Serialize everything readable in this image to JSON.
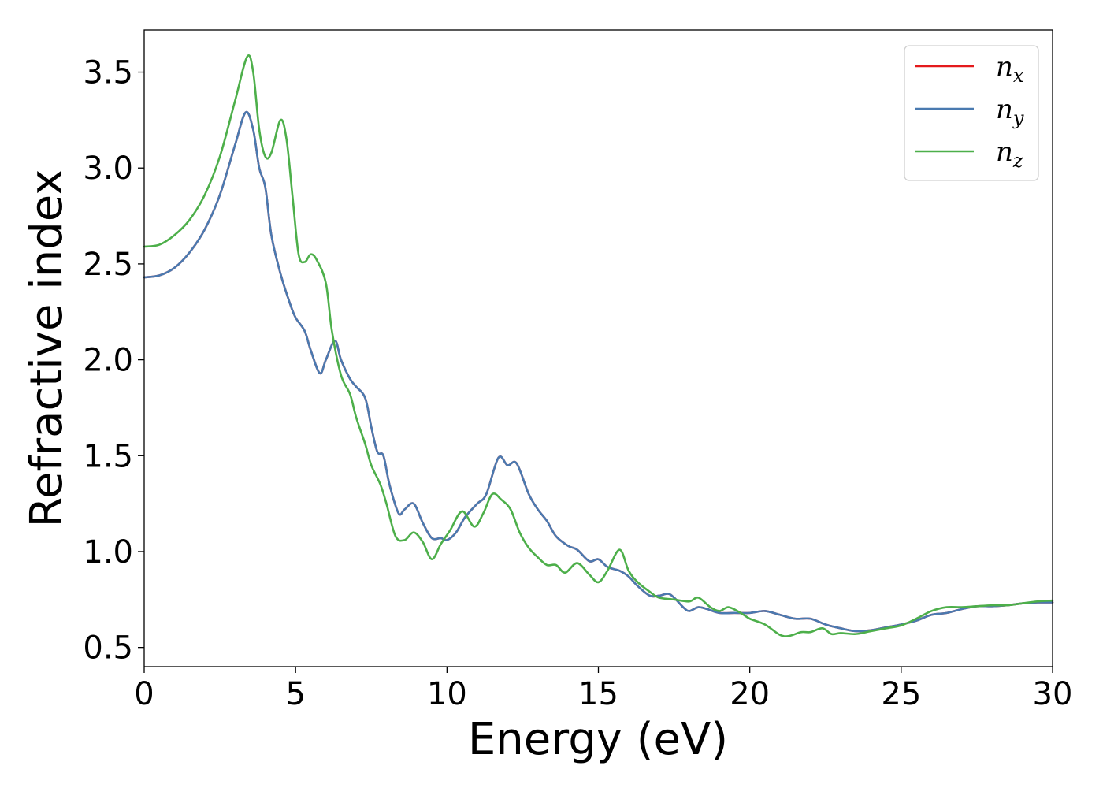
{
  "chart_data": {
    "type": "line",
    "xlabel": "Energy (eV)",
    "ylabel": "Refractive index",
    "xlim": [
      0,
      30
    ],
    "ylim": [
      0.4,
      3.72
    ],
    "x_ticks": [
      "0",
      "5",
      "10",
      "15",
      "20",
      "25",
      "30"
    ],
    "y_ticks": [
      "0.5",
      "1.0",
      "1.5",
      "2.0",
      "2.5",
      "3.0",
      "3.5"
    ],
    "grid": false,
    "legend_position": "top-right",
    "series": [
      {
        "name": "n",
        "subscript": "x",
        "color": "#e41a1c",
        "points": [
          [
            0,
            2.43
          ],
          [
            0.5,
            2.44
          ],
          [
            1,
            2.48
          ],
          [
            1.5,
            2.56
          ],
          [
            2,
            2.68
          ],
          [
            2.5,
            2.86
          ],
          [
            3,
            3.12
          ],
          [
            3.35,
            3.29
          ],
          [
            3.6,
            3.2
          ],
          [
            3.8,
            3.0
          ],
          [
            4.0,
            2.9
          ],
          [
            4.2,
            2.65
          ],
          [
            4.5,
            2.45
          ],
          [
            4.8,
            2.3
          ],
          [
            5.0,
            2.22
          ],
          [
            5.3,
            2.15
          ],
          [
            5.5,
            2.05
          ],
          [
            5.8,
            1.93
          ],
          [
            6.0,
            2.0
          ],
          [
            6.3,
            2.1
          ],
          [
            6.5,
            2.0
          ],
          [
            6.8,
            1.9
          ],
          [
            7.0,
            1.86
          ],
          [
            7.3,
            1.8
          ],
          [
            7.5,
            1.65
          ],
          [
            7.7,
            1.52
          ],
          [
            7.9,
            1.5
          ],
          [
            8.1,
            1.35
          ],
          [
            8.4,
            1.2
          ],
          [
            8.6,
            1.22
          ],
          [
            8.9,
            1.25
          ],
          [
            9.2,
            1.15
          ],
          [
            9.5,
            1.07
          ],
          [
            9.8,
            1.07
          ],
          [
            10.0,
            1.06
          ],
          [
            10.3,
            1.1
          ],
          [
            10.6,
            1.18
          ],
          [
            11.0,
            1.25
          ],
          [
            11.3,
            1.3
          ],
          [
            11.7,
            1.49
          ],
          [
            12.0,
            1.45
          ],
          [
            12.3,
            1.46
          ],
          [
            12.7,
            1.3
          ],
          [
            13.0,
            1.22
          ],
          [
            13.3,
            1.16
          ],
          [
            13.6,
            1.08
          ],
          [
            14.0,
            1.03
          ],
          [
            14.3,
            1.01
          ],
          [
            14.7,
            0.95
          ],
          [
            15.0,
            0.96
          ],
          [
            15.3,
            0.92
          ],
          [
            15.7,
            0.9
          ],
          [
            16.0,
            0.87
          ],
          [
            16.3,
            0.82
          ],
          [
            16.7,
            0.77
          ],
          [
            17.0,
            0.77
          ],
          [
            17.3,
            0.78
          ],
          [
            17.5,
            0.76
          ],
          [
            17.8,
            0.71
          ],
          [
            18.0,
            0.69
          ],
          [
            18.3,
            0.71
          ],
          [
            18.6,
            0.7
          ],
          [
            19.0,
            0.68
          ],
          [
            19.5,
            0.68
          ],
          [
            20.0,
            0.68
          ],
          [
            20.5,
            0.69
          ],
          [
            21.0,
            0.67
          ],
          [
            21.5,
            0.65
          ],
          [
            22.0,
            0.65
          ],
          [
            22.5,
            0.62
          ],
          [
            23.0,
            0.6
          ],
          [
            23.5,
            0.585
          ],
          [
            24.0,
            0.59
          ],
          [
            24.5,
            0.605
          ],
          [
            25.0,
            0.62
          ],
          [
            25.5,
            0.64
          ],
          [
            26.0,
            0.67
          ],
          [
            26.5,
            0.68
          ],
          [
            27.0,
            0.7
          ],
          [
            27.5,
            0.715
          ],
          [
            28.0,
            0.715
          ],
          [
            28.5,
            0.72
          ],
          [
            29.0,
            0.73
          ],
          [
            29.5,
            0.735
          ],
          [
            30.0,
            0.735
          ]
        ]
      },
      {
        "name": "n",
        "subscript": "y",
        "color": "#4a7ab0",
        "points": [
          [
            0,
            2.43
          ],
          [
            0.5,
            2.44
          ],
          [
            1,
            2.48
          ],
          [
            1.5,
            2.56
          ],
          [
            2,
            2.68
          ],
          [
            2.5,
            2.86
          ],
          [
            3,
            3.12
          ],
          [
            3.35,
            3.29
          ],
          [
            3.6,
            3.2
          ],
          [
            3.8,
            3.0
          ],
          [
            4.0,
            2.9
          ],
          [
            4.2,
            2.65
          ],
          [
            4.5,
            2.45
          ],
          [
            4.8,
            2.3
          ],
          [
            5.0,
            2.22
          ],
          [
            5.3,
            2.15
          ],
          [
            5.5,
            2.05
          ],
          [
            5.8,
            1.93
          ],
          [
            6.0,
            2.0
          ],
          [
            6.3,
            2.1
          ],
          [
            6.5,
            2.0
          ],
          [
            6.8,
            1.9
          ],
          [
            7.0,
            1.86
          ],
          [
            7.3,
            1.8
          ],
          [
            7.5,
            1.65
          ],
          [
            7.7,
            1.52
          ],
          [
            7.9,
            1.5
          ],
          [
            8.1,
            1.35
          ],
          [
            8.4,
            1.2
          ],
          [
            8.6,
            1.22
          ],
          [
            8.9,
            1.25
          ],
          [
            9.2,
            1.15
          ],
          [
            9.5,
            1.07
          ],
          [
            9.8,
            1.07
          ],
          [
            10.0,
            1.06
          ],
          [
            10.3,
            1.1
          ],
          [
            10.6,
            1.18
          ],
          [
            11.0,
            1.25
          ],
          [
            11.3,
            1.3
          ],
          [
            11.7,
            1.49
          ],
          [
            12.0,
            1.45
          ],
          [
            12.3,
            1.46
          ],
          [
            12.7,
            1.3
          ],
          [
            13.0,
            1.22
          ],
          [
            13.3,
            1.16
          ],
          [
            13.6,
            1.08
          ],
          [
            14.0,
            1.03
          ],
          [
            14.3,
            1.01
          ],
          [
            14.7,
            0.95
          ],
          [
            15.0,
            0.96
          ],
          [
            15.3,
            0.92
          ],
          [
            15.7,
            0.9
          ],
          [
            16.0,
            0.87
          ],
          [
            16.3,
            0.82
          ],
          [
            16.7,
            0.77
          ],
          [
            17.0,
            0.77
          ],
          [
            17.3,
            0.78
          ],
          [
            17.5,
            0.76
          ],
          [
            17.8,
            0.71
          ],
          [
            18.0,
            0.69
          ],
          [
            18.3,
            0.71
          ],
          [
            18.6,
            0.7
          ],
          [
            19.0,
            0.68
          ],
          [
            19.5,
            0.68
          ],
          [
            20.0,
            0.68
          ],
          [
            20.5,
            0.69
          ],
          [
            21.0,
            0.67
          ],
          [
            21.5,
            0.65
          ],
          [
            22.0,
            0.65
          ],
          [
            22.5,
            0.62
          ],
          [
            23.0,
            0.6
          ],
          [
            23.5,
            0.585
          ],
          [
            24.0,
            0.59
          ],
          [
            24.5,
            0.605
          ],
          [
            25.0,
            0.62
          ],
          [
            25.5,
            0.64
          ],
          [
            26.0,
            0.67
          ],
          [
            26.5,
            0.68
          ],
          [
            27.0,
            0.7
          ],
          [
            27.5,
            0.715
          ],
          [
            28.0,
            0.715
          ],
          [
            28.5,
            0.72
          ],
          [
            29.0,
            0.73
          ],
          [
            29.5,
            0.735
          ],
          [
            30.0,
            0.735
          ]
        ]
      },
      {
        "name": "n",
        "subscript": "z",
        "color": "#4daf4a",
        "points": [
          [
            0,
            2.59
          ],
          [
            0.5,
            2.6
          ],
          [
            1,
            2.65
          ],
          [
            1.5,
            2.73
          ],
          [
            2,
            2.86
          ],
          [
            2.5,
            3.06
          ],
          [
            3,
            3.35
          ],
          [
            3.4,
            3.58
          ],
          [
            3.6,
            3.5
          ],
          [
            3.8,
            3.2
          ],
          [
            4.0,
            3.06
          ],
          [
            4.2,
            3.08
          ],
          [
            4.5,
            3.25
          ],
          [
            4.7,
            3.15
          ],
          [
            4.9,
            2.85
          ],
          [
            5.1,
            2.55
          ],
          [
            5.3,
            2.51
          ],
          [
            5.5,
            2.55
          ],
          [
            5.7,
            2.52
          ],
          [
            6.0,
            2.4
          ],
          [
            6.2,
            2.15
          ],
          [
            6.5,
            1.92
          ],
          [
            6.8,
            1.82
          ],
          [
            7.0,
            1.7
          ],
          [
            7.3,
            1.56
          ],
          [
            7.5,
            1.45
          ],
          [
            7.8,
            1.35
          ],
          [
            8.0,
            1.25
          ],
          [
            8.3,
            1.08
          ],
          [
            8.6,
            1.06
          ],
          [
            8.9,
            1.1
          ],
          [
            9.2,
            1.05
          ],
          [
            9.5,
            0.96
          ],
          [
            9.8,
            1.04
          ],
          [
            10.1,
            1.11
          ],
          [
            10.5,
            1.21
          ],
          [
            10.9,
            1.13
          ],
          [
            11.2,
            1.2
          ],
          [
            11.5,
            1.3
          ],
          [
            11.8,
            1.27
          ],
          [
            12.1,
            1.22
          ],
          [
            12.4,
            1.1
          ],
          [
            12.7,
            1.02
          ],
          [
            13.0,
            0.97
          ],
          [
            13.3,
            0.93
          ],
          [
            13.6,
            0.93
          ],
          [
            13.9,
            0.89
          ],
          [
            14.3,
            0.94
          ],
          [
            14.7,
            0.88
          ],
          [
            15.0,
            0.84
          ],
          [
            15.3,
            0.9
          ],
          [
            15.7,
            1.01
          ],
          [
            16.0,
            0.9
          ],
          [
            16.3,
            0.84
          ],
          [
            16.7,
            0.79
          ],
          [
            17.0,
            0.76
          ],
          [
            17.5,
            0.75
          ],
          [
            18.0,
            0.74
          ],
          [
            18.3,
            0.76
          ],
          [
            18.7,
            0.71
          ],
          [
            19.0,
            0.69
          ],
          [
            19.3,
            0.71
          ],
          [
            19.7,
            0.68
          ],
          [
            20.0,
            0.65
          ],
          [
            20.5,
            0.62
          ],
          [
            21.0,
            0.565
          ],
          [
            21.3,
            0.56
          ],
          [
            21.7,
            0.58
          ],
          [
            22.0,
            0.58
          ],
          [
            22.4,
            0.6
          ],
          [
            22.7,
            0.57
          ],
          [
            23.0,
            0.575
          ],
          [
            23.5,
            0.57
          ],
          [
            24.0,
            0.585
          ],
          [
            24.5,
            0.6
          ],
          [
            25.0,
            0.615
          ],
          [
            25.5,
            0.65
          ],
          [
            26.0,
            0.69
          ],
          [
            26.5,
            0.71
          ],
          [
            27.0,
            0.71
          ],
          [
            27.5,
            0.715
          ],
          [
            28.0,
            0.72
          ],
          [
            28.5,
            0.72
          ],
          [
            29.0,
            0.73
          ],
          [
            29.5,
            0.74
          ],
          [
            30.0,
            0.745
          ]
        ]
      }
    ]
  }
}
